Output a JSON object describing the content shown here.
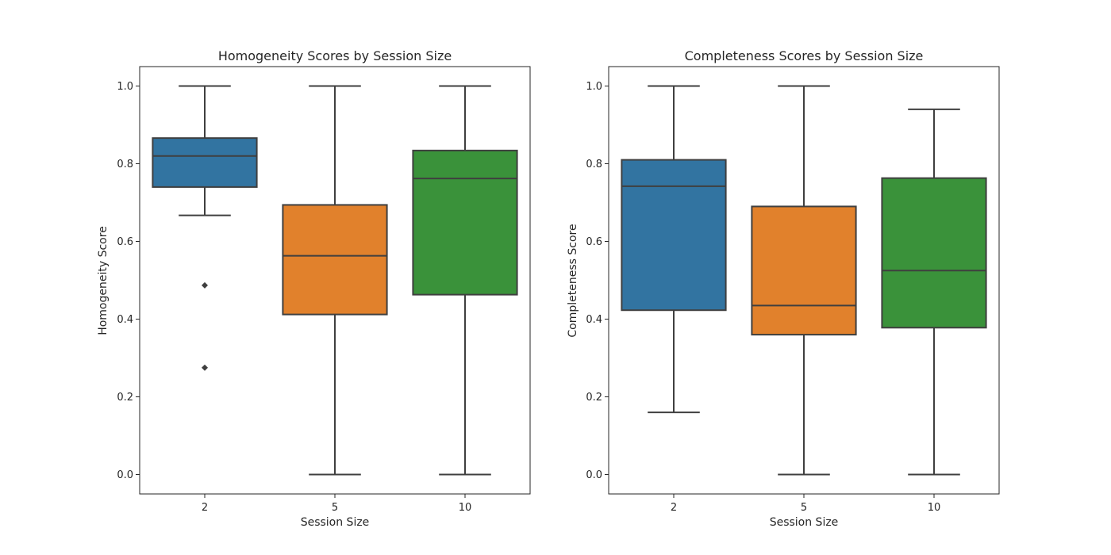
{
  "chart_data": [
    {
      "type": "box",
      "title": "Homogeneity Scores by Session Size",
      "xlabel": "Session Size",
      "ylabel": "Homogeneity Score",
      "categories": [
        "2",
        "5",
        "10"
      ],
      "colors": [
        "#3274a1",
        "#e1812c",
        "#3a923a"
      ],
      "ylim": [
        -0.05,
        1.05
      ],
      "yticks": [
        "0.0",
        "0.2",
        "0.4",
        "0.6",
        "0.8",
        "1.0"
      ],
      "grid": false,
      "boxes": [
        {
          "category": "2",
          "whisker_low": 0.667,
          "q1": 0.74,
          "median": 0.82,
          "q3": 0.866,
          "whisker_high": 1.0,
          "outliers": [
            0.487,
            0.275
          ]
        },
        {
          "category": "5",
          "whisker_low": 0.0,
          "q1": 0.412,
          "median": 0.563,
          "q3": 0.694,
          "whisker_high": 1.0,
          "outliers": []
        },
        {
          "category": "10",
          "whisker_low": 0.0,
          "q1": 0.463,
          "median": 0.762,
          "q3": 0.834,
          "whisker_high": 1.0,
          "outliers": []
        }
      ]
    },
    {
      "type": "box",
      "title": "Completeness Scores by Session Size",
      "xlabel": "Session Size",
      "ylabel": "Completeness Score",
      "categories": [
        "2",
        "5",
        "10"
      ],
      "colors": [
        "#3274a1",
        "#e1812c",
        "#3a923a"
      ],
      "ylim": [
        -0.05,
        1.05
      ],
      "yticks": [
        "0.0",
        "0.2",
        "0.4",
        "0.6",
        "0.8",
        "1.0"
      ],
      "grid": false,
      "boxes": [
        {
          "category": "2",
          "whisker_low": 0.16,
          "q1": 0.423,
          "median": 0.742,
          "q3": 0.81,
          "whisker_high": 1.0,
          "outliers": []
        },
        {
          "category": "5",
          "whisker_low": 0.0,
          "q1": 0.36,
          "median": 0.435,
          "q3": 0.69,
          "whisker_high": 1.0,
          "outliers": []
        },
        {
          "category": "10",
          "whisker_low": 0.0,
          "q1": 0.378,
          "median": 0.525,
          "q3": 0.763,
          "whisker_high": 0.94,
          "outliers": []
        }
      ]
    }
  ]
}
